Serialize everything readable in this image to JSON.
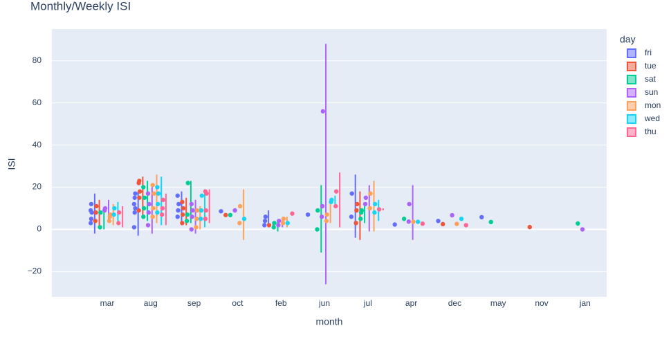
{
  "chart_data": {
    "type": "box",
    "title": "Monthly/Weekly ISI",
    "x_label": "month",
    "y_label": "ISI",
    "legend_title": "day",
    "categories": [
      "mar",
      "aug",
      "sep",
      "oct",
      "feb",
      "jun",
      "jul",
      "apr",
      "dec",
      "may",
      "nov",
      "jan"
    ],
    "ylim": [
      -32,
      95
    ],
    "yticks": [
      {
        "value": -20,
        "label": "−20"
      },
      0,
      20,
      40,
      60,
      80
    ],
    "grid": true,
    "legend": "right",
    "series": [
      {
        "name": "fri",
        "color": "#636efa",
        "values": [
          [
            3,
            5,
            8,
            9,
            12
          ],
          [
            1,
            8,
            10,
            12,
            15,
            17
          ],
          [
            6,
            9,
            12,
            16
          ],
          [
            8.6
          ],
          [
            2,
            4,
            6
          ],
          [
            7
          ],
          [
            6,
            17
          ],
          [
            2.3
          ],
          [
            4
          ],
          [
            5.8
          ],
          null,
          null
        ],
        "ranges": [
          [
            -2,
            17
          ],
          [
            -3,
            18
          ],
          [
            2,
            18
          ],
          null,
          [
            1,
            9
          ],
          null,
          [
            -4,
            26
          ],
          null,
          null,
          null,
          null,
          null
        ]
      },
      {
        "name": "tue",
        "color": "#EF553B",
        "values": [
          [
            4,
            8,
            11
          ],
          [
            9,
            15,
            18,
            22,
            23
          ],
          [
            3,
            7,
            10,
            13
          ],
          [
            6.8
          ],
          [
            2
          ],
          null,
          [
            3,
            9,
            12
          ],
          null,
          [
            2.5
          ],
          null,
          [
            1.1
          ],
          null
        ],
        "ranges": [
          [
            1,
            14
          ],
          [
            5,
            25
          ],
          [
            2,
            15
          ],
          null,
          [
            1,
            3
          ],
          null,
          [
            -5,
            18
          ],
          null,
          null,
          null,
          null,
          null
        ]
      },
      {
        "name": "sat",
        "color": "#00cc96",
        "values": [
          [
            1,
            8
          ],
          [
            6,
            10,
            15,
            20
          ],
          [
            4,
            7,
            22
          ],
          [
            6.8
          ],
          [
            1,
            3
          ],
          [
            0,
            9
          ],
          [
            5,
            8,
            9
          ],
          [
            5
          ],
          null,
          [
            3.5
          ],
          null,
          [
            2.8
          ]
        ],
        "ranges": [
          [
            0,
            8
          ],
          [
            4,
            23
          ],
          [
            3,
            23
          ],
          null,
          [
            -1,
            4
          ],
          [
            -11,
            21
          ],
          [
            3,
            12
          ],
          null,
          null,
          null,
          null,
          null
        ]
      },
      {
        "name": "sun",
        "color": "#ab63fa",
        "values": [
          [
            9,
            10
          ],
          [
            2,
            8,
            12,
            17
          ],
          [
            0,
            6,
            9,
            12
          ],
          [
            9
          ],
          [
            2,
            4
          ],
          [
            6,
            11,
            56
          ],
          [
            12,
            15
          ],
          [
            3.7,
            12
          ],
          [
            6.7
          ],
          null,
          null,
          [
            0
          ]
        ],
        "ranges": [
          [
            4,
            14
          ],
          [
            -2,
            20
          ],
          [
            -2,
            14
          ],
          null,
          [
            1,
            5
          ],
          [
            -26,
            88
          ],
          [
            -1,
            21
          ],
          [
            -5,
            21
          ],
          null,
          null,
          null,
          null
        ]
      },
      {
        "name": "mon",
        "color": "#FFA15A",
        "values": [
          [
            4,
            6,
            7
          ],
          [
            6,
            10,
            17,
            21
          ],
          [
            1,
            5,
            9
          ],
          [
            3,
            11
          ],
          [
            3,
            5
          ],
          [
            4,
            7
          ],
          [
            10,
            17
          ],
          [
            3.6
          ],
          [
            2.6
          ],
          null,
          null,
          null
        ],
        "ranges": [
          [
            2,
            12
          ],
          [
            3,
            26
          ],
          [
            0,
            11
          ],
          [
            -5,
            19
          ],
          [
            1,
            6
          ],
          [
            3,
            12
          ],
          [
            -1,
            23
          ],
          null,
          null,
          null,
          null,
          null
        ]
      },
      {
        "name": "wed",
        "color": "#19d3f3",
        "values": [
          [
            7,
            10
          ],
          [
            8,
            12,
            17,
            20
          ],
          [
            5,
            9,
            16
          ],
          [
            5
          ],
          [
            3
          ],
          [
            13,
            14
          ],
          [
            8,
            12
          ],
          [
            3.6
          ],
          [
            5
          ],
          null,
          null,
          null
        ],
        "ranges": [
          [
            4,
            13
          ],
          [
            2,
            25
          ],
          [
            1,
            19
          ],
          null,
          null,
          [
            10,
            16
          ],
          [
            4,
            14
          ],
          null,
          null,
          null,
          null,
          null
        ]
      },
      {
        "name": "thu",
        "color": "#FF6692",
        "values": [
          [
            3,
            8
          ],
          [
            7,
            10,
            14
          ],
          [
            5,
            9,
            17,
            18
          ],
          null,
          [
            7.5
          ],
          [
            11,
            18
          ],
          [
            9.5
          ],
          [
            2.7
          ],
          [
            2
          ],
          null,
          null,
          null
        ],
        "ranges": [
          [
            1,
            11
          ],
          [
            2,
            17
          ],
          [
            3,
            19
          ],
          null,
          null,
          [
            1,
            27
          ],
          [
            9,
            10
          ],
          null,
          null,
          null,
          null,
          null
        ]
      }
    ]
  }
}
